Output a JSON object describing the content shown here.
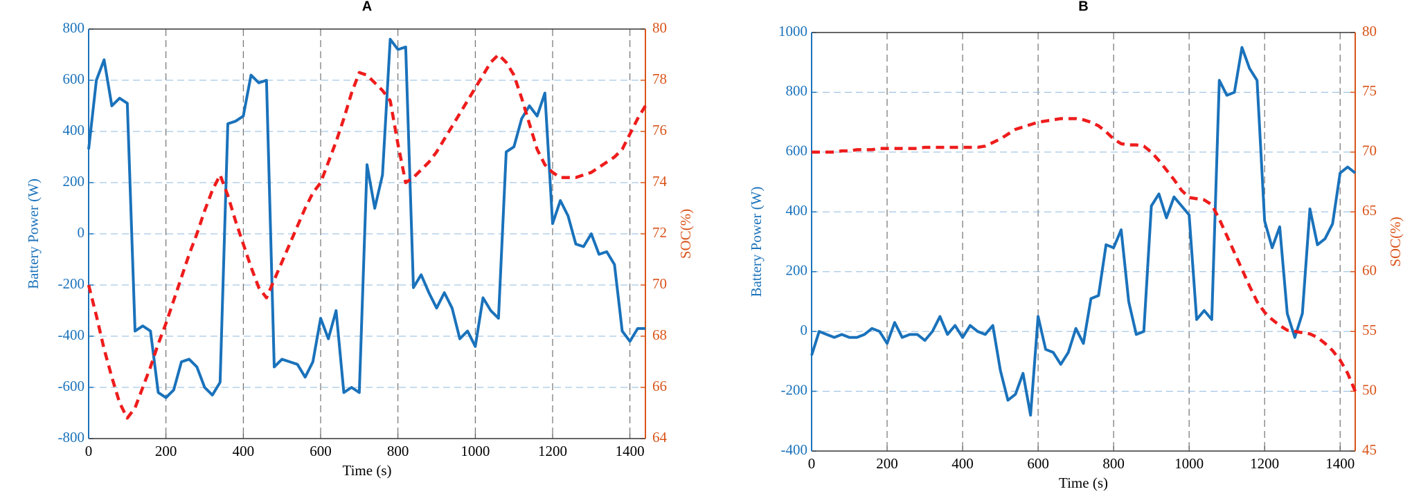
{
  "chart_data": [
    {
      "type": "line",
      "title": "A",
      "x_label": "Time (s)",
      "y_label": "Battery Power (W)",
      "y2_label": "SOC(%)",
      "x": [
        0,
        20,
        40,
        60,
        80,
        100,
        120,
        140,
        160,
        180,
        200,
        220,
        240,
        260,
        280,
        300,
        320,
        340,
        360,
        380,
        400,
        420,
        440,
        460,
        480,
        500,
        520,
        540,
        560,
        580,
        600,
        620,
        640,
        660,
        680,
        700,
        720,
        740,
        760,
        780,
        800,
        820,
        840,
        860,
        880,
        900,
        920,
        940,
        960,
        980,
        1000,
        1020,
        1040,
        1060,
        1080,
        1100,
        1120,
        1140,
        1160,
        1180,
        1200,
        1220,
        1240,
        1260,
        1280,
        1300,
        1320,
        1340,
        1360,
        1380,
        1400,
        1420,
        1440
      ],
      "series": [
        {
          "color": "#1a72bb",
          "values": [
            330,
            600,
            680,
            500,
            530,
            510,
            -380,
            -360,
            -380,
            -620,
            -640,
            -610,
            -500,
            -490,
            -520,
            -600,
            -630,
            -580,
            430,
            440,
            460,
            620,
            590,
            600,
            -520,
            -490,
            -500,
            -510,
            -560,
            -500,
            -330,
            -410,
            -300,
            -620,
            -600,
            -620,
            270,
            100,
            230,
            760,
            720,
            730,
            -210,
            -160,
            -230,
            -290,
            -230,
            -290,
            -410,
            -380,
            -440,
            -250,
            -300,
            -330,
            320,
            340,
            450,
            500,
            460,
            550,
            40,
            130,
            70,
            -40,
            -50,
            0,
            -80,
            -70,
            -120,
            -380,
            -420,
            -370,
            -370
          ]
        },
        {
          "color": "#ee1c1c",
          "axis": "y2",
          "line_style": "dashed",
          "values": [
            70,
            68.8,
            67.5,
            66.4,
            65.4,
            64.8,
            65.2,
            66,
            66.8,
            67.7,
            68.5,
            69.4,
            70.3,
            71.2,
            72,
            72.9,
            73.7,
            74.3,
            73.5,
            72.5,
            71.6,
            70.7,
            69.9,
            69.5,
            70.2,
            70.9,
            71.6,
            72.3,
            73,
            73.6,
            74,
            74.8,
            75.6,
            76.5,
            77.5,
            78.3,
            78.2,
            77.9,
            77.6,
            77.2,
            75.5,
            74,
            74.2,
            74.5,
            74.8,
            75.2,
            75.7,
            76.2,
            76.7,
            77.2,
            77.7,
            78.2,
            78.7,
            79,
            78.7,
            78.2,
            77.3,
            76.3,
            75.3,
            74.7,
            74.4,
            74.2,
            74.2,
            74.2,
            74.3,
            74.4,
            74.6,
            74.8,
            75,
            75.3,
            75.9,
            76.5,
            77
          ]
        }
      ],
      "xlim": [
        0,
        1440
      ],
      "ylim": [
        -800,
        800
      ],
      "y2lim": [
        64,
        80
      ],
      "xticks": [
        0,
        200,
        400,
        600,
        800,
        1000,
        1200,
        1400
      ],
      "yticks": [
        -800,
        -600,
        -400,
        -200,
        0,
        200,
        400,
        600,
        800
      ],
      "y2ticks": [
        64,
        66,
        68,
        70,
        72,
        74,
        76,
        78,
        80
      ],
      "grid": true
    },
    {
      "type": "line",
      "title": "B",
      "x_label": "Time (s)",
      "y_label": "Battery Power (W)",
      "y2_label": "SOC(%)",
      "x": [
        0,
        20,
        40,
        60,
        80,
        100,
        120,
        140,
        160,
        180,
        200,
        220,
        240,
        260,
        280,
        300,
        320,
        340,
        360,
        380,
        400,
        420,
        440,
        460,
        480,
        500,
        520,
        540,
        560,
        580,
        600,
        620,
        640,
        660,
        680,
        700,
        720,
        740,
        760,
        780,
        800,
        820,
        840,
        860,
        880,
        900,
        920,
        940,
        960,
        980,
        1000,
        1020,
        1040,
        1060,
        1080,
        1100,
        1120,
        1140,
        1160,
        1180,
        1200,
        1220,
        1240,
        1260,
        1280,
        1300,
        1320,
        1340,
        1360,
        1380,
        1400,
        1420,
        1440
      ],
      "series": [
        {
          "color": "#1a72bb",
          "values": [
            -80,
            0,
            -10,
            -20,
            -10,
            -20,
            -20,
            -10,
            10,
            0,
            -40,
            30,
            -20,
            -10,
            -10,
            -30,
            0,
            50,
            -10,
            20,
            -20,
            20,
            0,
            -10,
            20,
            -130,
            -230,
            -210,
            -140,
            -280,
            50,
            -60,
            -70,
            -110,
            -70,
            10,
            -40,
            110,
            120,
            290,
            280,
            340,
            100,
            -10,
            0,
            420,
            460,
            380,
            450,
            420,
            390,
            40,
            70,
            40,
            840,
            790,
            800,
            950,
            880,
            840,
            370,
            280,
            350,
            60,
            -20,
            60,
            410,
            290,
            310,
            360,
            530,
            550,
            530
          ]
        },
        {
          "color": "#ee1c1c",
          "axis": "y2",
          "line_style": "dashed",
          "values": [
            70,
            70,
            70,
            70,
            70.1,
            70.1,
            70.2,
            70.2,
            70.2,
            70.3,
            70.3,
            70.3,
            70.3,
            70.3,
            70.3,
            70.4,
            70.4,
            70.4,
            70.4,
            70.4,
            70.4,
            70.4,
            70.4,
            70.5,
            70.8,
            71.1,
            71.5,
            71.9,
            72.1,
            72.3,
            72.5,
            72.6,
            72.7,
            72.8,
            72.8,
            72.8,
            72.7,
            72.5,
            72.2,
            71.7,
            71.1,
            70.7,
            70.6,
            70.6,
            70.5,
            70,
            69.3,
            68.5,
            67.7,
            66.8,
            66.2,
            66.1,
            66,
            65.6,
            64.4,
            63,
            61.6,
            60.2,
            58.8,
            57.5,
            56.6,
            56,
            55.5,
            55.1,
            55,
            54.9,
            54.8,
            54.5,
            54,
            53.4,
            52.6,
            51.5,
            50
          ]
        }
      ],
      "xlim": [
        0,
        1440
      ],
      "ylim": [
        -400,
        1000
      ],
      "y2lim": [
        45,
        80
      ],
      "xticks": [
        0,
        200,
        400,
        600,
        800,
        1000,
        1200,
        1400
      ],
      "yticks": [
        -400,
        -200,
        0,
        200,
        400,
        600,
        800,
        1000
      ],
      "y2ticks": [
        45,
        50,
        55,
        60,
        65,
        70,
        75,
        80
      ],
      "grid": true
    }
  ]
}
